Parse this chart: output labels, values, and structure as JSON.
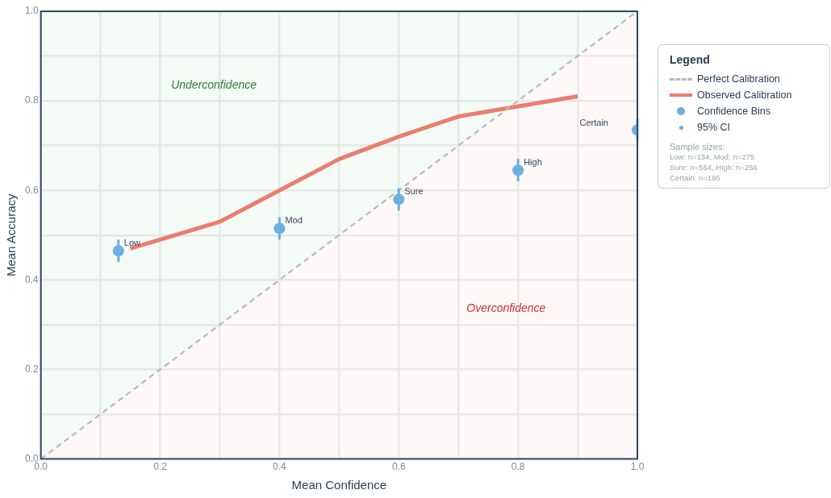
{
  "chart_data": {
    "type": "scatter",
    "xlabel": "Mean Confidence",
    "ylabel": "Mean Accuracy",
    "legend_title": "Legend",
    "legend": "right",
    "grid": true,
    "xlim": [
      0,
      1
    ],
    "ylim": [
      0,
      1
    ],
    "xticks": [
      {
        "value": 0,
        "label": "0.0"
      },
      {
        "value": 0.1,
        "label": null
      },
      {
        "value": 0.2,
        "label": "0.2"
      },
      {
        "value": 0.3,
        "label": null
      },
      {
        "value": 0.4,
        "label": "0.4"
      },
      {
        "value": 0.5,
        "label": null
      },
      {
        "value": 0.6,
        "label": "0.6"
      },
      {
        "value": 0.7,
        "label": null
      },
      {
        "value": 0.8,
        "label": "0.8"
      },
      {
        "value": 0.9,
        "label": null
      },
      {
        "value": 1,
        "label": "1.0"
      }
    ],
    "yticks": [
      {
        "value": 0,
        "label": "0.0"
      },
      {
        "value": 0.1,
        "label": null
      },
      {
        "value": 0.2,
        "label": "0.2"
      },
      {
        "value": 0.3,
        "label": null
      },
      {
        "value": 0.4,
        "label": "0.4"
      },
      {
        "value": 0.5,
        "label": null
      },
      {
        "value": 0.6,
        "label": "0.6"
      },
      {
        "value": 0.7,
        "label": null
      },
      {
        "value": 0.8,
        "label": "0.8"
      },
      {
        "value": 0.9,
        "label": null
      },
      {
        "value": 1,
        "label": "1.0"
      }
    ],
    "series": [
      {
        "name": "Perfect Calibration",
        "type": "line",
        "line_style": "dashed",
        "marker": "none",
        "color": "#b4bcb8",
        "x": [
          0,
          1
        ],
        "values": [
          0,
          1
        ]
      },
      {
        "name": "Observed Calibration",
        "type": "line",
        "line_style": "solid",
        "marker": "none",
        "color": "#ec7c6e",
        "x": [
          0.15,
          0.3,
          0.4,
          0.5,
          0.6,
          0.7,
          0.9
        ],
        "values": [
          0.47,
          0.53,
          0.6,
          0.67,
          0.72,
          0.765,
          0.81
        ]
      },
      {
        "name": "Confidence Bins",
        "marker": "circle",
        "color": "#6cb0e0",
        "x": [
          0.13,
          0.4,
          0.6,
          0.8,
          1.0
        ],
        "values": [
          0.465,
          0.515,
          0.58,
          0.645,
          0.735
        ],
        "errors": [
          0.025,
          0.025,
          0.025,
          0.025,
          0.025
        ]
      }
    ],
    "annotations": [
      "Underconfidence",
      "Overconfidence",
      "Certain",
      {
        "text": "Low",
        "x": 0.13,
        "y": 0.465
      },
      {
        "text": "Mod",
        "x": 0.4,
        "y": 0.515
      },
      {
        "text": "Sure",
        "x": 0.6,
        "y": 0.58
      },
      {
        "text": "High",
        "x": 0.8,
        "y": 0.645
      },
      "95% CI",
      "Sample sizes:",
      "Low: n=134, Mod: n=275",
      "Sure: n=564, High: n=256",
      "Certain: n=196"
    ]
  }
}
